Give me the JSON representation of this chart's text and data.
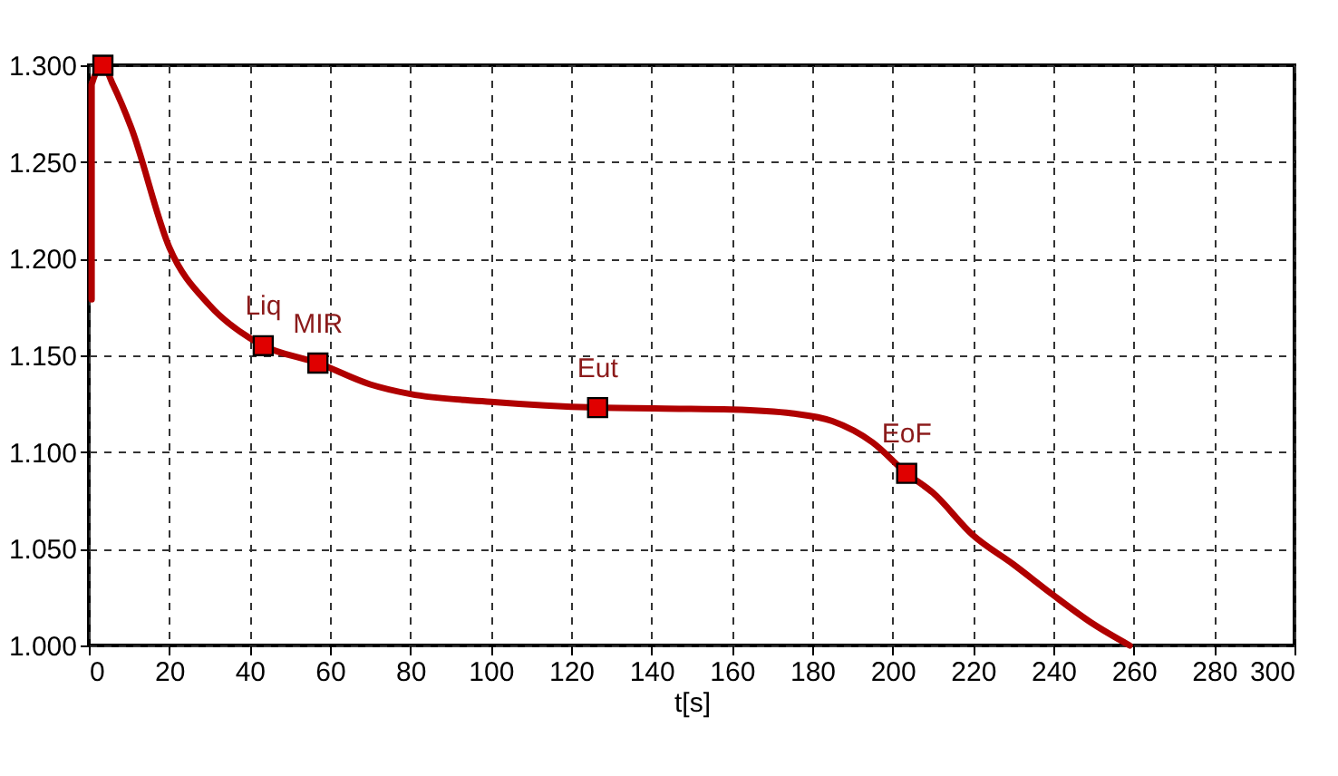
{
  "chart_data": {
    "type": "line",
    "xlabel": "t[s]",
    "xlim": [
      0,
      300
    ],
    "xticks": [
      0,
      20,
      40,
      60,
      80,
      100,
      120,
      140,
      160,
      180,
      200,
      220,
      240,
      260,
      280,
      300
    ],
    "ylim": [
      1.0,
      1.3
    ],
    "yticks": [
      {
        "value": 1.0,
        "label": "1.000"
      },
      {
        "value": 1.05,
        "label": "1.050"
      },
      {
        "value": 1.1,
        "label": "1.100"
      },
      {
        "value": 1.15,
        "label": "1.150"
      },
      {
        "value": 1.2,
        "label": "1.200"
      },
      {
        "value": 1.25,
        "label": "1.250"
      },
      {
        "value": 1.3,
        "label": "1.300"
      }
    ],
    "grid": true,
    "line_style": "solid",
    "series": [
      {
        "color": "#b00000",
        "marker": "none",
        "x": [
          0.7,
          0.7,
          3.5,
          6,
          10.5,
          20,
          30,
          40,
          43.4,
          57,
          70,
          80,
          100,
          126.6,
          160,
          175,
          185,
          195,
          203.5,
          210,
          220,
          230,
          240,
          250,
          259
        ],
        "values": [
          1.179,
          1.29,
          1.3,
          1.29,
          1.268,
          1.206,
          1.176,
          1.159,
          1.155,
          1.146,
          1.135,
          1.13,
          1.126,
          1.123,
          1.122,
          1.12,
          1.116,
          1.105,
          1.089,
          1.079,
          1.057,
          1.042,
          1.026,
          1.011,
          1.0
        ]
      },
      {
        "type": "scatter",
        "color": "#e00000",
        "marker": "square",
        "x": [
          3.5,
          43.4,
          57,
          126.6,
          203.5
        ],
        "values": [
          1.3,
          1.155,
          1.146,
          1.123,
          1.089
        ]
      }
    ],
    "annotations": [
      {
        "text": "Liq",
        "x": 43.4,
        "y": 1.155
      },
      {
        "text": "MIR",
        "x": 57,
        "y": 1.146
      },
      {
        "text": "Eut",
        "x": 126.6,
        "y": 1.123
      },
      {
        "text": "EoF",
        "x": 203.5,
        "y": 1.089
      }
    ]
  }
}
